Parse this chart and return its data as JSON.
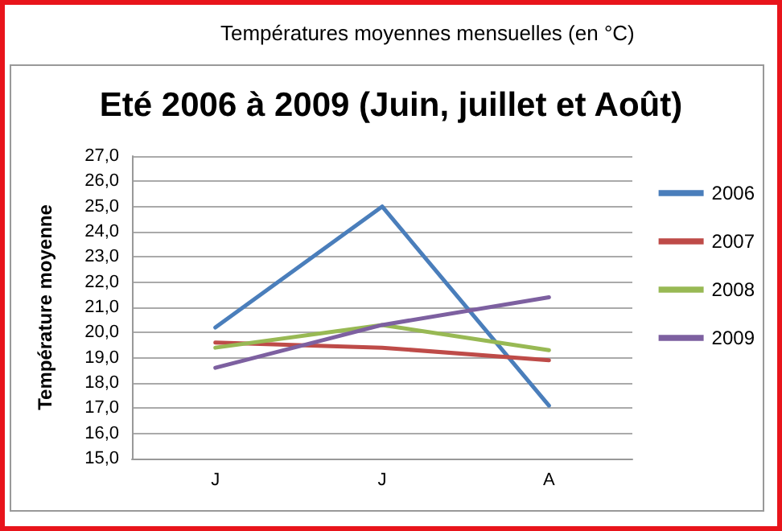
{
  "chart_data": {
    "type": "line",
    "title": "Températures moyennes mensuelles (en °C)",
    "subtitle": "Eté 2006 à 2009 (Juin, juillet et Août)",
    "ylabel": "Température moyenne",
    "categories": [
      "J",
      "J",
      "A"
    ],
    "series": [
      {
        "name": "2006",
        "color": "#4a7ebb",
        "values": [
          20.2,
          25.0,
          17.1
        ]
      },
      {
        "name": "2007",
        "color": "#be4b48",
        "values": [
          19.6,
          19.4,
          18.9
        ]
      },
      {
        "name": "2008",
        "color": "#98b954",
        "values": [
          19.4,
          20.3,
          19.3
        ]
      },
      {
        "name": "2009",
        "color": "#7d60a0",
        "values": [
          18.6,
          20.3,
          21.4
        ]
      }
    ],
    "ylim": [
      15,
      27
    ],
    "yticks": [
      {
        "value": 15,
        "label": "15,0"
      },
      {
        "value": 16,
        "label": "16,0"
      },
      {
        "value": 17,
        "label": "17,0"
      },
      {
        "value": 18,
        "label": "18,0"
      },
      {
        "value": 19,
        "label": "19,0"
      },
      {
        "value": 20,
        "label": "20,0"
      },
      {
        "value": 21,
        "label": "21,0"
      },
      {
        "value": 22,
        "label": "22,0"
      },
      {
        "value": 23,
        "label": "23,0"
      },
      {
        "value": 24,
        "label": "24,0"
      },
      {
        "value": 25,
        "label": "25,0"
      },
      {
        "value": 26,
        "label": "26,0"
      },
      {
        "value": 27,
        "label": "27,0"
      }
    ],
    "grid": "y",
    "legend": "right",
    "marker": "none",
    "line_style": "solid"
  }
}
